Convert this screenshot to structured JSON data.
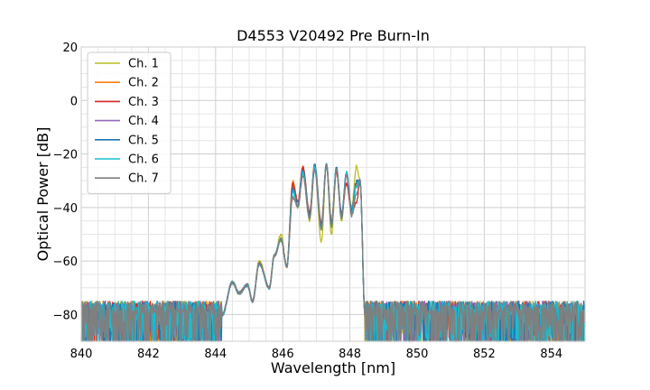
{
  "chart_data": {
    "type": "line",
    "title": "D4553 V20492 Pre Burn-In",
    "xlabel": "Wavelength [nm]",
    "ylabel": "Optical Power [dB]",
    "xlim": [
      840,
      855
    ],
    "ylim": [
      -90,
      20
    ],
    "xticks": [
      "840",
      "842",
      "844",
      "846",
      "848",
      "850",
      "852",
      "854"
    ],
    "yticks": [
      "20",
      "0",
      "−20",
      "−40",
      "−60",
      "−80"
    ],
    "grid": true,
    "minor_grid": true,
    "legend_position": "top-left",
    "noise_floor_db": -78,
    "series": [
      {
        "name": "Ch. 1",
        "color": "#bcbd22",
        "peaks": [
          [
            844.5,
            -68
          ],
          [
            845.3,
            -60
          ],
          [
            845.95,
            -50
          ],
          [
            846.3,
            -32
          ],
          [
            846.6,
            -27
          ],
          [
            846.95,
            -25
          ],
          [
            847.3,
            -24
          ],
          [
            847.6,
            -26
          ],
          [
            847.9,
            -27
          ],
          [
            848.2,
            -24.5
          ]
        ],
        "dips": [
          [
            846.45,
            -40
          ],
          [
            846.8,
            -45
          ],
          [
            847.15,
            -53
          ],
          [
            847.45,
            -50
          ],
          [
            847.75,
            -45
          ],
          [
            848.05,
            -40
          ]
        ]
      },
      {
        "name": "Ch. 2",
        "color": "#ff7f0e",
        "peaks": [
          [
            844.5,
            -68
          ],
          [
            845.3,
            -61
          ],
          [
            845.95,
            -52
          ],
          [
            846.3,
            -30
          ],
          [
            846.6,
            -25
          ],
          [
            846.95,
            -24
          ],
          [
            847.3,
            -24
          ],
          [
            847.6,
            -26
          ],
          [
            847.9,
            -28
          ],
          [
            848.2,
            -32
          ]
        ],
        "dips": [
          [
            846.45,
            -38
          ],
          [
            846.8,
            -42
          ],
          [
            847.15,
            -46
          ],
          [
            847.45,
            -45
          ],
          [
            847.75,
            -42
          ],
          [
            848.05,
            -40
          ]
        ]
      },
      {
        "name": "Ch. 3",
        "color": "#d62728",
        "peaks": [
          [
            844.5,
            -68
          ],
          [
            845.3,
            -61
          ],
          [
            845.95,
            -52
          ],
          [
            846.3,
            -31
          ],
          [
            846.6,
            -25
          ],
          [
            846.95,
            -24
          ],
          [
            847.3,
            -24
          ],
          [
            847.6,
            -27
          ],
          [
            847.9,
            -31
          ],
          [
            848.2,
            -38
          ]
        ],
        "dips": [
          [
            846.45,
            -38
          ],
          [
            846.8,
            -42
          ],
          [
            847.15,
            -46
          ],
          [
            847.45,
            -45
          ],
          [
            847.75,
            -42
          ],
          [
            848.05,
            -42
          ]
        ]
      },
      {
        "name": "Ch. 4",
        "color": "#9467bd",
        "peaks": [
          [
            844.5,
            -68
          ],
          [
            845.3,
            -61
          ],
          [
            845.95,
            -52
          ],
          [
            846.3,
            -34
          ],
          [
            846.6,
            -27
          ],
          [
            846.95,
            -25
          ],
          [
            847.3,
            -24
          ],
          [
            847.6,
            -25
          ],
          [
            847.9,
            -27
          ],
          [
            848.2,
            -31
          ]
        ],
        "dips": [
          [
            846.45,
            -39
          ],
          [
            846.8,
            -43
          ],
          [
            847.15,
            -47
          ],
          [
            847.45,
            -46
          ],
          [
            847.75,
            -43
          ],
          [
            848.05,
            -41
          ]
        ]
      },
      {
        "name": "Ch. 5",
        "color": "#1f77b4",
        "peaks": [
          [
            844.5,
            -68
          ],
          [
            845.3,
            -61
          ],
          [
            845.95,
            -52
          ],
          [
            846.3,
            -33
          ],
          [
            846.6,
            -26
          ],
          [
            846.95,
            -24
          ],
          [
            847.3,
            -24
          ],
          [
            847.6,
            -25
          ],
          [
            847.9,
            -27
          ],
          [
            848.2,
            -30
          ]
        ],
        "dips": [
          [
            846.45,
            -39
          ],
          [
            846.8,
            -43
          ],
          [
            847.15,
            -47
          ],
          [
            847.45,
            -46
          ],
          [
            847.75,
            -43
          ],
          [
            848.05,
            -41
          ]
        ]
      },
      {
        "name": "Ch. 6",
        "color": "#17becf",
        "peaks": [
          [
            844.5,
            -68
          ],
          [
            845.3,
            -61
          ],
          [
            845.95,
            -52
          ],
          [
            846.3,
            -34
          ],
          [
            846.6,
            -27
          ],
          [
            846.95,
            -25
          ],
          [
            847.3,
            -24
          ],
          [
            847.6,
            -25
          ],
          [
            847.9,
            -27
          ],
          [
            848.2,
            -32
          ]
        ],
        "dips": [
          [
            846.45,
            -40
          ],
          [
            846.8,
            -44
          ],
          [
            847.15,
            -48
          ],
          [
            847.45,
            -47
          ],
          [
            847.75,
            -44
          ],
          [
            848.05,
            -42
          ]
        ]
      },
      {
        "name": "Ch. 7",
        "color": "#7f7f7f",
        "peaks": [
          [
            844.5,
            -68
          ],
          [
            845.3,
            -61
          ],
          [
            845.95,
            -52
          ],
          [
            846.3,
            -36
          ],
          [
            846.6,
            -28
          ],
          [
            846.95,
            -26
          ],
          [
            847.3,
            -24
          ],
          [
            847.6,
            -26
          ],
          [
            847.9,
            -28
          ],
          [
            848.2,
            -35
          ]
        ],
        "dips": [
          [
            846.45,
            -40
          ],
          [
            846.8,
            -44
          ],
          [
            847.15,
            -48
          ],
          [
            847.45,
            -47
          ],
          [
            847.75,
            -44
          ],
          [
            848.05,
            -43
          ]
        ]
      }
    ]
  }
}
